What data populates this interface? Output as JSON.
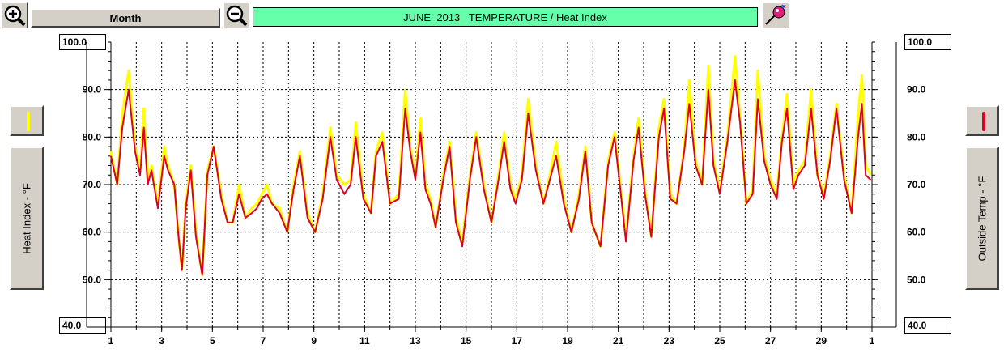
{
  "toolbar": {
    "zoom_in": "zoom-in-icon",
    "zoom_out": "zoom-out-icon",
    "period_label": "Month",
    "title": "JUNE  2013   TEMPERATURE / Heat Index",
    "options": "color-wand-icon"
  },
  "left_axis": {
    "top_value": "100.0",
    "bottom_value": "40.0",
    "label": "Heat Index - °F",
    "swatch_color": "#ffff00"
  },
  "right_axis": {
    "top_value": "100.0",
    "bottom_value": "40.0",
    "label": "Outside Temp - °F",
    "swatch_color": "#dd0022"
  },
  "chart_data": {
    "type": "line",
    "xlabel": "",
    "ylabel": "Heat Index - °F",
    "ylabel_right": "Outside Temp - °F",
    "xlim": [
      1,
      31
    ],
    "ylim": [
      40,
      100
    ],
    "x_tick_labels": [
      "1",
      "3",
      "5",
      "7",
      "9",
      "11",
      "13",
      "15",
      "17",
      "19",
      "21",
      "23",
      "25",
      "27",
      "29",
      "1"
    ],
    "y_tick_labels": [
      "50.0",
      "60.0",
      "70.0",
      "80.0",
      "90.0"
    ],
    "grid": true,
    "series": [
      {
        "name": "Heat Index - °F",
        "color": "#ffff00",
        "x": [
          1.0,
          1.25,
          1.45,
          1.7,
          1.95,
          2.15,
          2.3,
          2.45,
          2.6,
          2.85,
          3.1,
          3.25,
          3.5,
          3.65,
          3.8,
          3.95,
          4.15,
          4.35,
          4.6,
          4.8,
          5.05,
          5.35,
          5.6,
          5.8,
          6.05,
          6.3,
          6.55,
          6.75,
          6.95,
          7.15,
          7.35,
          7.65,
          7.95,
          8.2,
          8.45,
          8.75,
          9.05,
          9.35,
          9.65,
          9.9,
          10.2,
          10.45,
          10.65,
          10.95,
          11.25,
          11.45,
          11.7,
          12.0,
          12.35,
          12.6,
          12.8,
          13.0,
          13.2,
          13.4,
          13.6,
          13.8,
          14.1,
          14.35,
          14.6,
          14.85,
          15.15,
          15.4,
          15.7,
          16.0,
          16.25,
          16.5,
          16.75,
          16.95,
          17.2,
          17.45,
          17.75,
          18.05,
          18.3,
          18.55,
          18.85,
          19.15,
          19.45,
          19.7,
          19.95,
          20.3,
          20.6,
          20.85,
          21.1,
          21.3,
          21.6,
          21.8,
          22.05,
          22.3,
          22.6,
          22.8,
          23.05,
          23.3,
          23.6,
          23.8,
          24.05,
          24.3,
          24.55,
          24.75,
          25.0,
          25.3,
          25.6,
          25.8,
          26.05,
          26.3,
          26.5,
          26.75,
          27.0,
          27.25,
          27.45,
          27.65,
          27.9,
          28.1,
          28.35,
          28.6,
          28.85,
          29.1,
          29.35,
          29.6,
          29.9,
          30.2,
          30.45,
          30.6,
          30.75,
          30.95
        ],
        "y": [
          77,
          70,
          85,
          94,
          78,
          73,
          86,
          71,
          74,
          66,
          78,
          74,
          70,
          60,
          52,
          66,
          74,
          60,
          51,
          73,
          78,
          68,
          62,
          62,
          70,
          63,
          65,
          66,
          68,
          70,
          66,
          65,
          60,
          70,
          77,
          64,
          60,
          68,
          82,
          72,
          70,
          71,
          83,
          68,
          64,
          77,
          81,
          66,
          68,
          90,
          78,
          72,
          84,
          70,
          67,
          61,
          72,
          79,
          63,
          58,
          72,
          81,
          70,
          62,
          71,
          81,
          70,
          67,
          72,
          88,
          74,
          66,
          72,
          79,
          67,
          60,
          68,
          78,
          62,
          57,
          75,
          81,
          69,
          59,
          76,
          84,
          69,
          59,
          82,
          88,
          68,
          66,
          78,
          92,
          75,
          70,
          95,
          75,
          69,
          80,
          97,
          84,
          66,
          69,
          94,
          76,
          71,
          68,
          80,
          89,
          70,
          73,
          75,
          90,
          72,
          68,
          76,
          87,
          72,
          64,
          85,
          93,
          74,
          72
        ]
      },
      {
        "name": "Outside Temp - °F",
        "color": "#dd0022",
        "x": [
          1.0,
          1.25,
          1.45,
          1.7,
          1.95,
          2.15,
          2.3,
          2.45,
          2.6,
          2.85,
          3.1,
          3.25,
          3.5,
          3.65,
          3.8,
          3.95,
          4.15,
          4.35,
          4.6,
          4.8,
          5.05,
          5.35,
          5.6,
          5.8,
          6.05,
          6.3,
          6.55,
          6.75,
          6.95,
          7.15,
          7.35,
          7.65,
          7.95,
          8.2,
          8.45,
          8.75,
          9.05,
          9.35,
          9.65,
          9.9,
          10.2,
          10.45,
          10.65,
          10.95,
          11.25,
          11.45,
          11.7,
          12.0,
          12.35,
          12.6,
          12.8,
          13.0,
          13.2,
          13.4,
          13.6,
          13.8,
          14.1,
          14.35,
          14.6,
          14.85,
          15.15,
          15.4,
          15.7,
          16.0,
          16.25,
          16.5,
          16.75,
          16.95,
          17.2,
          17.45,
          17.75,
          18.05,
          18.3,
          18.55,
          18.85,
          19.15,
          19.45,
          19.7,
          19.95,
          20.3,
          20.6,
          20.85,
          21.1,
          21.3,
          21.6,
          21.8,
          22.05,
          22.3,
          22.6,
          22.8,
          23.05,
          23.3,
          23.6,
          23.8,
          24.05,
          24.3,
          24.55,
          24.75,
          25.0,
          25.3,
          25.6,
          25.8,
          26.05,
          26.3,
          26.5,
          26.75,
          27.0,
          27.25,
          27.45,
          27.65,
          27.9,
          28.1,
          28.35,
          28.6,
          28.85,
          29.1,
          29.35,
          29.6,
          29.9,
          30.2,
          30.45,
          30.6,
          30.75,
          30.95
        ],
        "y": [
          76,
          70,
          82,
          90,
          77,
          72,
          82,
          70,
          73,
          65,
          76,
          73,
          70,
          60,
          52,
          65,
          73,
          59,
          51,
          72,
          78,
          67,
          62,
          62,
          68,
          63,
          64,
          65,
          67,
          68,
          66,
          64,
          60,
          69,
          76,
          63,
          60,
          67,
          80,
          71,
          68,
          70,
          80,
          67,
          64,
          76,
          79,
          66,
          67,
          86,
          77,
          71,
          81,
          69,
          66,
          61,
          71,
          78,
          62,
          57,
          71,
          80,
          69,
          62,
          70,
          79,
          69,
          66,
          71,
          85,
          73,
          66,
          71,
          76,
          66,
          60,
          67,
          77,
          62,
          57,
          74,
          80,
          68,
          58,
          75,
          82,
          68,
          59,
          80,
          86,
          67,
          66,
          77,
          87,
          74,
          70,
          90,
          74,
          68,
          79,
          92,
          83,
          66,
          68,
          88,
          75,
          70,
          67,
          79,
          86,
          69,
          72,
          74,
          86,
          72,
          67,
          75,
          86,
          71,
          64,
          80,
          87,
          72,
          71
        ]
      }
    ]
  }
}
